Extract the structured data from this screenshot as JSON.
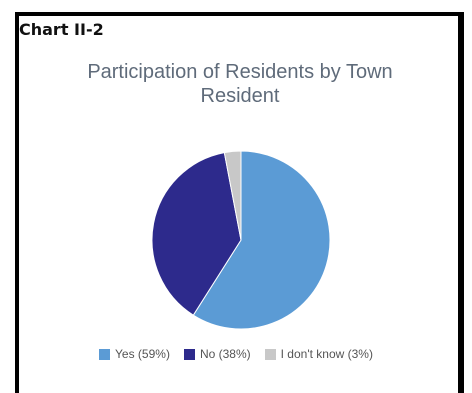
{
  "header": {
    "chart_label": "Chart II-2"
  },
  "chart_data": {
    "type": "pie",
    "title": "Participation of Residents by Town Resident",
    "title_lines": [
      "Participation of Residents by Town",
      "Resident"
    ],
    "slices": [
      {
        "label": "Yes",
        "value": 59,
        "legend": "Yes (59%)",
        "color": "#5b9bd5"
      },
      {
        "label": "No",
        "value": 38,
        "legend": "No (38%)",
        "color": "#2d2a8c"
      },
      {
        "label": "I don't know",
        "value": 3,
        "legend": "I don't know (3%)",
        "color": "#c8c8c8"
      }
    ],
    "legend_position": "bottom"
  }
}
